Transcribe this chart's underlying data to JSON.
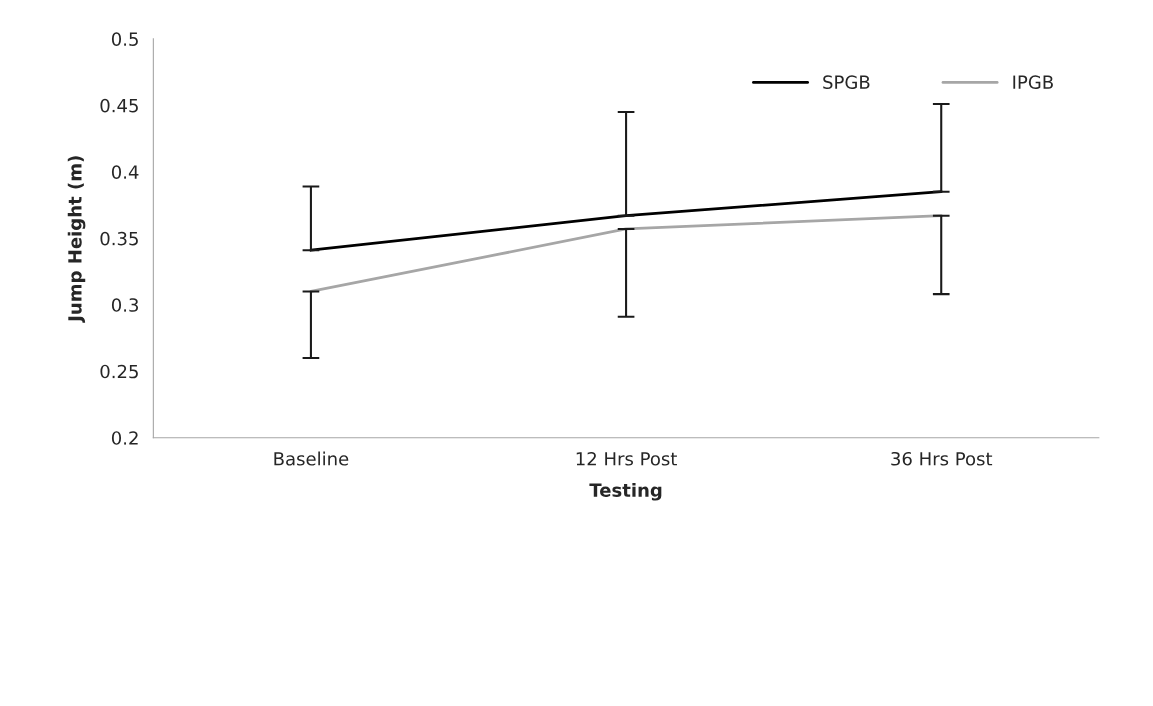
{
  "chart_data": {
    "type": "line",
    "xlabel": "Testing",
    "ylabel": "Jump Height (m)",
    "categories": [
      "Baseline",
      "12 Hrs Post",
      "36 Hrs Post"
    ],
    "series": [
      {
        "name": "SPGB",
        "color": "#000000",
        "values": [
          0.341,
          0.367,
          0.385
        ],
        "errors": [
          [
            0.341,
            0.389
          ],
          [
            0.367,
            0.445
          ],
          [
            0.385,
            0.451
          ]
        ]
      },
      {
        "name": "IPGB",
        "color": "#a6a6a6",
        "values": [
          0.31,
          0.357,
          0.367
        ],
        "errors": [
          [
            0.26,
            0.31
          ],
          [
            0.291,
            0.357
          ],
          [
            0.308,
            0.367
          ]
        ]
      }
    ],
    "ylim": [
      0.2,
      0.5
    ],
    "yticks": [
      0.2,
      0.25,
      0.3,
      0.35,
      0.4,
      0.45,
      0.5
    ],
    "grid": false,
    "legend": "top right",
    "marker": "none",
    "line_style": "solid"
  }
}
